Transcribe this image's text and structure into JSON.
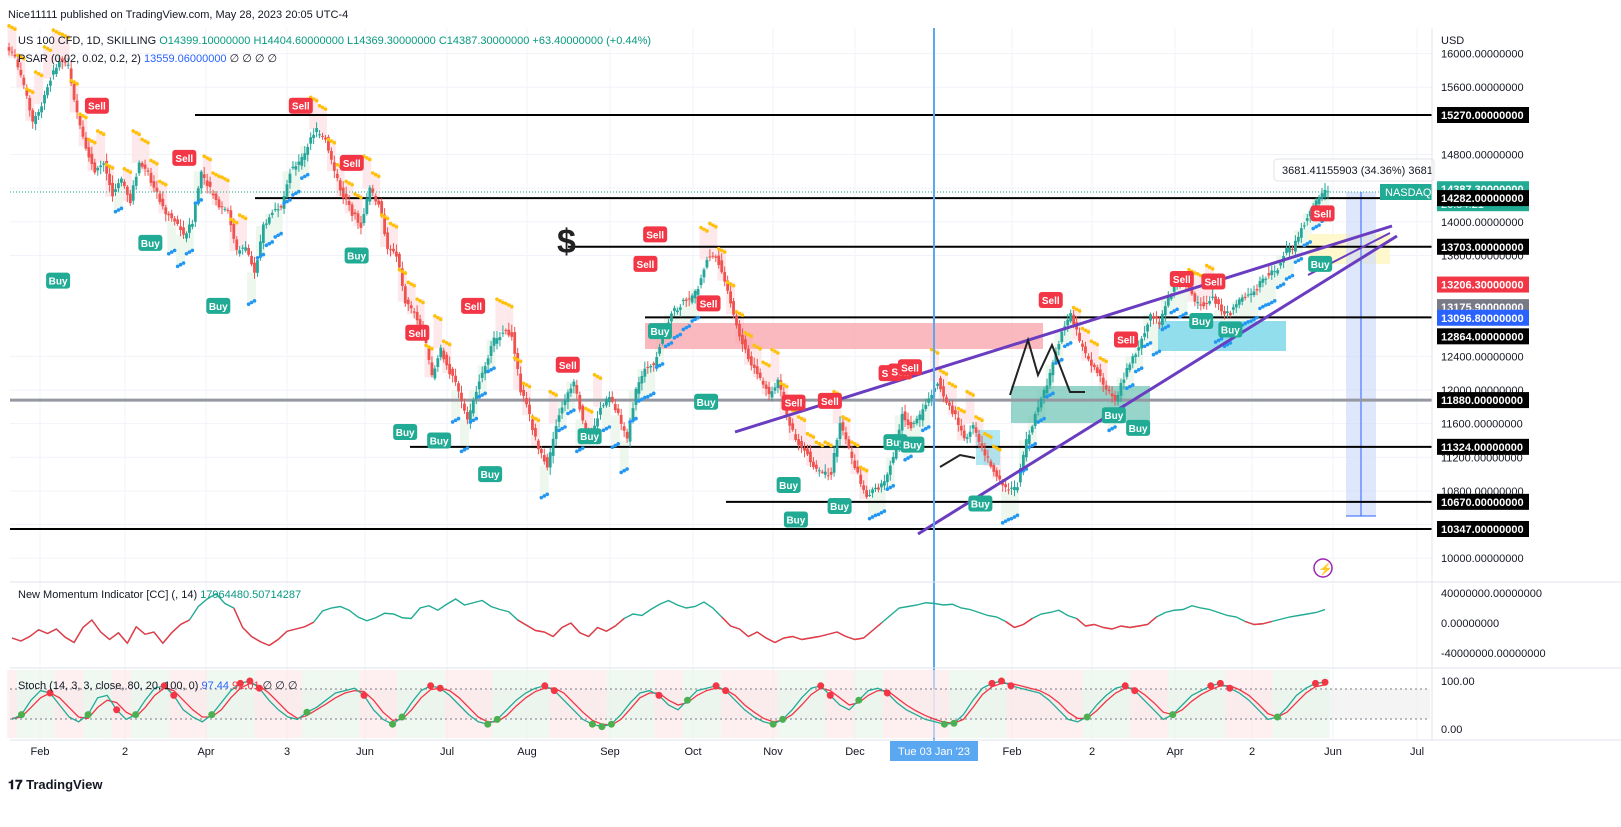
{
  "header": {
    "publisher": "Nice11111 published on TradingView.com, May 28, 2023 20:05 UTC-4"
  },
  "legend": {
    "symbol": "US 100 CFD, 1D, SKILLING",
    "open": "O14399.10000000",
    "high": "H14404.60000000",
    "low": "L14369.30000000",
    "close": "C14387.30000000",
    "change": "+63.40000000 (+0.44%)",
    "psar_name": "PSAR (0.02, 0.02, 0.2, 2)",
    "psar_value": "13559.06000000",
    "psar_extra": "∅ ∅ ∅ ∅",
    "momentum_name": "New Momentum Indicator [CC] (, 14)",
    "momentum_value": "17964480.50714287",
    "stoch_name": "Stoch (14, 3, 3, close, 80, 20, 100, 0)",
    "stoch_k": "97.44",
    "stoch_d": "92.01",
    "stoch_extra": "∅ ∅ ∅"
  },
  "footer": {
    "logo_text": "TradingView"
  },
  "chart_data": [
    {
      "type": "candlestick",
      "title": "US 100 CFD, 1D, SKILLING",
      "currency": "USD",
      "ylim": [
        10000,
        16000
      ],
      "y_ticks": [
        "16000.00000000",
        "15600.00000000",
        "14800.00000000",
        "14400.00000000",
        "14000.00000000",
        "13600.00000000",
        "12400.00000000",
        "12000.00000000",
        "11600.00000000",
        "11200.00000000",
        "10800.00000000",
        "10400.00000000",
        "10000.00000000"
      ],
      "x_ticks": [
        "Feb",
        "2",
        "Apr",
        "3",
        "Jun",
        "Jul",
        "Aug",
        "Sep",
        "Oct",
        "Nov",
        "Dec",
        "Tue 03 Jan '23",
        "Feb",
        "2",
        "Apr",
        "2",
        "Jun",
        "Jul"
      ],
      "price_labels": [
        {
          "value": "15270.00000000",
          "color": "#000000"
        },
        {
          "value": "14387.30000000",
          "color": "#22ab94"
        },
        {
          "value": "14282.00000000",
          "color": "#000000"
        },
        {
          "value": "13703.00000000",
          "color": "#000000"
        },
        {
          "value": "13206.30000000",
          "color": "#f23645"
        },
        {
          "value": "13175.90000000",
          "color": "#787b86"
        },
        {
          "value": "13096.80000000",
          "color": "#2962ff"
        },
        {
          "value": "12864.00000000",
          "color": "#000000"
        },
        {
          "value": "11880.00000000",
          "color": "#000000"
        },
        {
          "value": "11324.00000000",
          "color": "#000000"
        },
        {
          "value": "10670.00000000",
          "color": "#000000"
        },
        {
          "value": "10347.00000000",
          "color": "#000000"
        }
      ],
      "countdown": "20:54:21",
      "symbol_tag": "NASDAQ",
      "horizontal_levels": [
        15270,
        14282,
        13703,
        12864,
        11880,
        11324,
        10670,
        10347
      ],
      "measure_label": "3681.41155903 (34.36%) 3681",
      "signals": [
        {
          "label": "Buy",
          "x": "2021-12-20",
          "y": 13300
        },
        {
          "label": "Sell",
          "x": "2022-01-05",
          "y": 15380
        },
        {
          "label": "Buy",
          "x": "2022-01-27",
          "y": 13750
        },
        {
          "label": "Sell",
          "x": "2022-02-10",
          "y": 14760
        },
        {
          "label": "Buy",
          "x": "2022-02-24",
          "y": 13000
        },
        {
          "label": "Sell",
          "x": "2022-03-30",
          "y": 15380
        },
        {
          "label": "Sell",
          "x": "2022-04-20",
          "y": 14700
        },
        {
          "label": "Buy",
          "x": "2022-04-22",
          "y": 13600
        },
        {
          "label": "Sell",
          "x": "2022-05-17",
          "y": 12680
        },
        {
          "label": "Buy",
          "x": "2022-05-12",
          "y": 11500
        },
        {
          "label": "Buy",
          "x": "2022-05-26",
          "y": 11400
        },
        {
          "label": "Sell",
          "x": "2022-06-09",
          "y": 13000
        },
        {
          "label": "Buy",
          "x": "2022-06-16",
          "y": 11000
        },
        {
          "label": "Sell",
          "x": "2022-07-18",
          "y": 12300
        },
        {
          "label": "Buy",
          "x": "2022-07-27",
          "y": 11450
        },
        {
          "label": "Sell",
          "x": "2022-08-19",
          "y": 13500
        },
        {
          "label": "Sell",
          "x": "2022-08-23",
          "y": 13850
        },
        {
          "label": "Buy",
          "x": "2022-08-25",
          "y": 12700
        },
        {
          "label": "Sell",
          "x": "2022-09-14",
          "y": 13030
        },
        {
          "label": "Buy",
          "x": "2022-09-13",
          "y": 11860
        },
        {
          "label": "Sell",
          "x": "2022-10-19",
          "y": 11850
        },
        {
          "label": "Buy",
          "x": "2022-10-17",
          "y": 10870
        },
        {
          "label": "Buy",
          "x": "2022-10-20",
          "y": 10460
        },
        {
          "label": "Sell",
          "x": "2022-11-03",
          "y": 11870
        },
        {
          "label": "Buy",
          "x": "2022-11-07",
          "y": 10620
        },
        {
          "label": "Sell",
          "x": "2022-11-28",
          "y": 12200
        },
        {
          "label": "Sell",
          "x": "2022-12-02",
          "y": 12220
        },
        {
          "label": "Sell",
          "x": "2022-12-06",
          "y": 12270
        },
        {
          "label": "Buy",
          "x": "2022-11-30",
          "y": 11380
        },
        {
          "label": "Buy",
          "x": "2022-12-07",
          "y": 11350
        },
        {
          "label": "Buy",
          "x": "2023-01-04",
          "y": 10650
        },
        {
          "label": "Sell",
          "x": "2023-02-02",
          "y": 13070
        },
        {
          "label": "Sell",
          "x": "2023-03-05",
          "y": 12600
        },
        {
          "label": "Buy",
          "x": "2023-02-28",
          "y": 11700
        },
        {
          "label": "Buy",
          "x": "2023-03-10",
          "y": 11550
        },
        {
          "label": "Sell",
          "x": "2023-03-28",
          "y": 13320
        },
        {
          "label": "Sell",
          "x": "2023-04-10",
          "y": 13290
        },
        {
          "label": "Buy",
          "x": "2023-04-05",
          "y": 12820
        },
        {
          "label": "Buy",
          "x": "2023-04-17",
          "y": 12720
        },
        {
          "label": "Sell",
          "x": "2023-05-25",
          "y": 14100
        },
        {
          "label": "Buy",
          "x": "2023-05-24",
          "y": 13500
        }
      ],
      "series": [
        {
          "name": "Close",
          "x_start": "2021-12-01",
          "x_end": "2023-05-26",
          "values": [
            15950,
            15600,
            15200,
            15400,
            15700,
            15900,
            15850,
            15300,
            14900,
            14600,
            14700,
            14300,
            14500,
            14250,
            14700,
            14600,
            14350,
            14100,
            14000,
            13850,
            14000,
            14600,
            14400,
            14200,
            14150,
            13650,
            13700,
            13400,
            13950,
            14100,
            14200,
            14600,
            14700,
            14900,
            15100,
            15000,
            14600,
            14300,
            14100,
            13950,
            14400,
            14200,
            13700,
            13600,
            13050,
            12900,
            12700,
            12150,
            12500,
            12200,
            12000,
            11650,
            12000,
            12300,
            12600,
            12700,
            12650,
            12000,
            11700,
            11300,
            11100,
            11600,
            11900,
            12100,
            11650,
            11400,
            11800,
            11900,
            11700,
            11400,
            12000,
            12250,
            12300,
            12650,
            12900,
            13000,
            13100,
            13200,
            13550,
            13600,
            13300,
            12900,
            12550,
            12300,
            12150,
            11950,
            12100,
            11700,
            11400,
            11300,
            11100,
            11000,
            11000,
            11600,
            11300,
            11000,
            10700,
            10850,
            10900,
            11200,
            11700,
            11550,
            11700,
            11900,
            12100,
            11850,
            11700,
            11400,
            11600,
            11300,
            11100,
            10950,
            10800,
            10850,
            11400,
            11700,
            12000,
            12300,
            12700,
            12900,
            12600,
            12350,
            12200,
            12000,
            11900,
            12150,
            12400,
            12600,
            12900,
            12800,
            13100,
            13300,
            13250,
            13050,
            13000,
            13100,
            12950,
            12900,
            13050,
            13150,
            13200,
            13350,
            13400,
            13600,
            13700,
            13900,
            14100,
            14300,
            14387
          ]
        }
      ]
    },
    {
      "type": "line",
      "title": "New Momentum Indicator [CC] (, 14)",
      "ylim": [
        -40000000,
        40000000
      ],
      "y_ticks": [
        "40000000.00000000",
        "0.00000000",
        "-40000000.00000000"
      ],
      "series": [
        {
          "name": "Momentum",
          "x_start": "2021-12-01",
          "x_end": "2023-05-26",
          "values": [
            -20000000,
            -24000000,
            -18000000,
            -9000000,
            -14000000,
            -8000000,
            -19000000,
            -26000000,
            -6000000,
            4000000,
            -12000000,
            -22000000,
            -13000000,
            -27000000,
            -5000000,
            -15000000,
            -12000000,
            -27000000,
            -13000000,
            -2000000,
            4000000,
            22000000,
            32000000,
            39000000,
            26000000,
            20000000,
            -6000000,
            -18000000,
            -25000000,
            -30000000,
            -22000000,
            -11000000,
            -8000000,
            -5000000,
            1000000,
            16000000,
            20000000,
            22000000,
            17000000,
            8000000,
            3000000,
            7000000,
            13000000,
            12000000,
            7000000,
            6000000,
            20000000,
            23000000,
            17000000,
            25000000,
            32000000,
            24000000,
            27000000,
            30000000,
            22000000,
            18000000,
            15000000,
            4000000,
            -3000000,
            -10000000,
            -12000000,
            -18000000,
            -6000000,
            0,
            -13000000,
            -18000000,
            -6000000,
            -11000000,
            -4000000,
            6000000,
            12000000,
            10000000,
            18000000,
            25000000,
            30000000,
            24000000,
            20000000,
            22000000,
            28000000,
            20000000,
            8000000,
            -4000000,
            -8000000,
            -18000000,
            -12000000,
            -20000000,
            -26000000,
            -20000000,
            -18000000,
            -22000000,
            -20000000,
            -18000000,
            -15000000,
            -12000000,
            -18000000,
            -22000000,
            -20000000,
            -10000000,
            0,
            10000000,
            20000000,
            22000000,
            24000000,
            27000000,
            26000000,
            24000000,
            25000000,
            20000000,
            18000000,
            14000000,
            10000000,
            8000000,
            2000000,
            -6000000,
            -2000000,
            6000000,
            12000000,
            14000000,
            17000000,
            10000000,
            6000000,
            -4000000,
            -2000000,
            -6000000,
            -8000000,
            -4000000,
            -6000000,
            -4000000,
            -2000000,
            8000000,
            14000000,
            17000000,
            18000000,
            23000000,
            20000000,
            18000000,
            14000000,
            10000000,
            8000000,
            2000000,
            -2000000,
            -1000000,
            2000000,
            5000000,
            8000000,
            10000000,
            12000000,
            14000000,
            17964480
          ]
        }
      ]
    },
    {
      "type": "line",
      "title": "Stoch (14, 3, 3, close, 80, 20, 100, 0)",
      "ylim": [
        0,
        100
      ],
      "y_ticks": [
        "100.00",
        "0.00"
      ],
      "series": [
        {
          "name": "%K",
          "x_start": "2021-12-01",
          "x_end": "2023-05-26",
          "values": [
            20,
            30,
            60,
            80,
            75,
            50,
            25,
            15,
            30,
            65,
            70,
            40,
            20,
            30,
            60,
            85,
            90,
            70,
            40,
            25,
            15,
            30,
            55,
            80,
            95,
            100,
            85,
            60,
            40,
            25,
            20,
            35,
            45,
            60,
            75,
            80,
            85,
            70,
            40,
            20,
            10,
            25,
            55,
            80,
            90,
            85,
            70,
            50,
            30,
            15,
            10,
            20,
            40,
            60,
            75,
            85,
            90,
            80,
            60,
            40,
            20,
            10,
            5,
            10,
            30,
            55,
            75,
            80,
            70,
            50,
            40,
            60,
            80,
            85,
            90,
            80,
            60,
            40,
            25,
            15,
            10,
            20,
            40,
            65,
            85,
            90,
            70,
            50,
            40,
            60,
            80,
            85,
            75,
            55,
            40,
            30,
            20,
            15,
            10,
            12,
            30,
            60,
            85,
            95,
            100,
            90,
            85,
            80,
            75,
            60,
            40,
            20,
            15,
            25,
            50,
            70,
            85,
            90,
            80,
            60,
            40,
            20,
            30,
            50,
            70,
            80,
            90,
            95,
            85,
            75,
            60,
            40,
            20,
            25,
            45,
            70,
            85,
            95,
            97.44
          ]
        },
        {
          "name": "%D",
          "x_start": "2021-12-01",
          "x_end": "2023-05-26",
          "values": [
            22,
            25,
            45,
            65,
            75,
            65,
            45,
            25,
            22,
            45,
            60,
            55,
            35,
            25,
            45,
            70,
            85,
            80,
            60,
            40,
            25,
            25,
            40,
            65,
            85,
            95,
            90,
            75,
            55,
            35,
            22,
            28,
            40,
            52,
            65,
            75,
            80,
            78,
            60,
            35,
            18,
            20,
            40,
            65,
            82,
            85,
            80,
            65,
            45,
            25,
            15,
            15,
            28,
            48,
            65,
            78,
            85,
            85,
            75,
            55,
            35,
            18,
            10,
            8,
            20,
            42,
            65,
            75,
            75,
            60,
            50,
            55,
            70,
            80,
            85,
            82,
            70,
            50,
            35,
            22,
            15,
            18,
            30,
            50,
            72,
            85,
            80,
            65,
            50,
            55,
            70,
            80,
            80,
            65,
            50,
            38,
            28,
            20,
            14,
            12,
            20,
            45,
            72,
            88,
            95,
            95,
            90,
            85,
            80,
            70,
            55,
            35,
            22,
            22,
            38,
            58,
            75,
            85,
            85,
            72,
            55,
            35,
            30,
            40,
            58,
            72,
            82,
            90,
            90,
            82,
            70,
            52,
            32,
            25,
            35,
            55,
            75,
            88,
            92.01
          ]
        }
      ]
    }
  ]
}
